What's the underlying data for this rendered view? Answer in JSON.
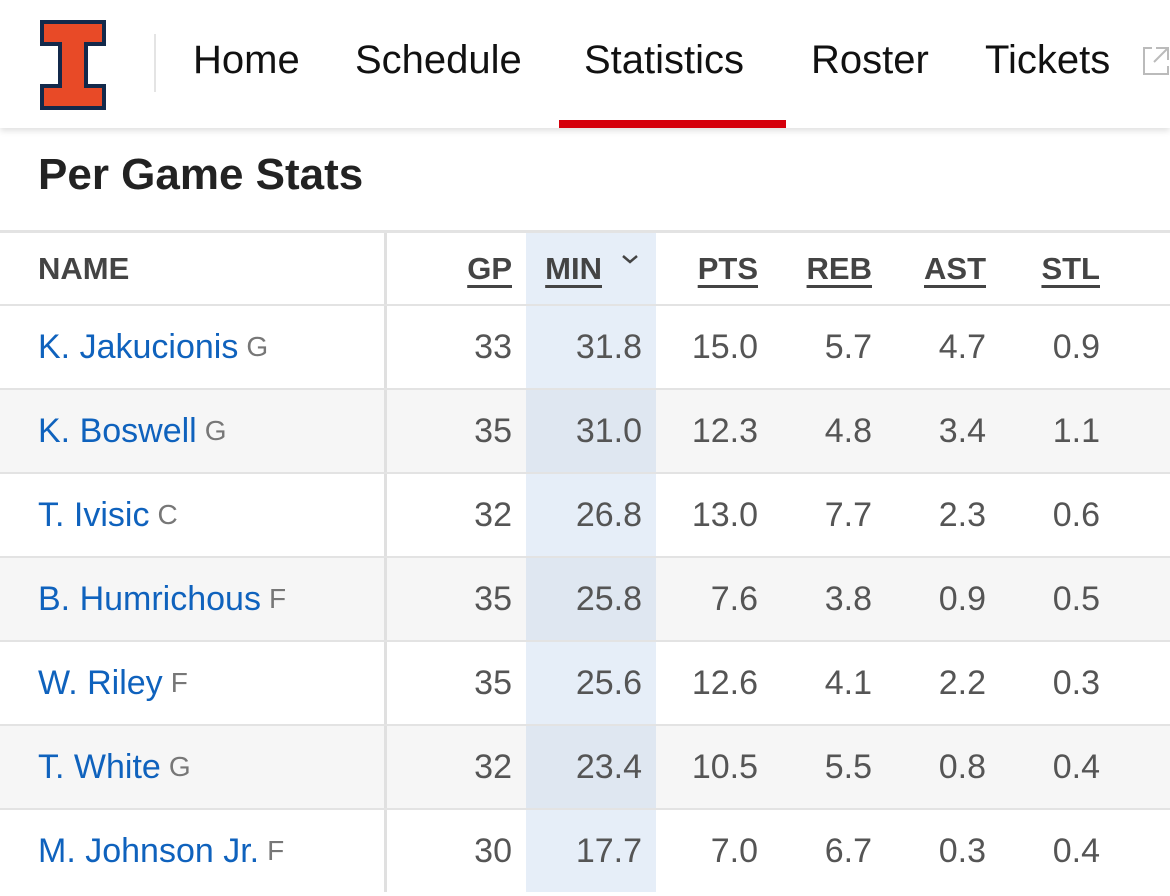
{
  "nav": {
    "items": [
      "Home",
      "Schedule",
      "Statistics",
      "Roster",
      "Tickets"
    ]
  },
  "section_title": "Per Game Stats",
  "table": {
    "headers": [
      "NAME",
      "GP",
      "MIN",
      "PTS",
      "REB",
      "AST",
      "STL"
    ],
    "rows": [
      {
        "name": "K. Jakucionis",
        "position": "G",
        "stats": [
          "33",
          "31.8",
          "15.0",
          "5.7",
          "4.7",
          "0.9"
        ]
      },
      {
        "name": "K. Boswell",
        "position": "G",
        "stats": [
          "35",
          "31.0",
          "12.3",
          "4.8",
          "3.4",
          "1.1"
        ]
      },
      {
        "name": "T. Ivisic",
        "position": "C",
        "stats": [
          "32",
          "26.8",
          "13.0",
          "7.7",
          "2.3",
          "0.6"
        ]
      },
      {
        "name": "B. Humrichous",
        "position": "F",
        "stats": [
          "35",
          "25.8",
          "7.6",
          "3.8",
          "0.9",
          "0.5"
        ]
      },
      {
        "name": "W. Riley",
        "position": "F",
        "stats": [
          "35",
          "25.6",
          "12.6",
          "4.1",
          "2.2",
          "0.3"
        ]
      },
      {
        "name": "T. White",
        "position": "G",
        "stats": [
          "32",
          "23.4",
          "10.5",
          "5.5",
          "0.8",
          "0.4"
        ]
      },
      {
        "name": "M. Johnson Jr.",
        "position": "F",
        "stats": [
          "30",
          "17.7",
          "7.0",
          "6.7",
          "0.3",
          "0.4"
        ]
      }
    ]
  }
}
